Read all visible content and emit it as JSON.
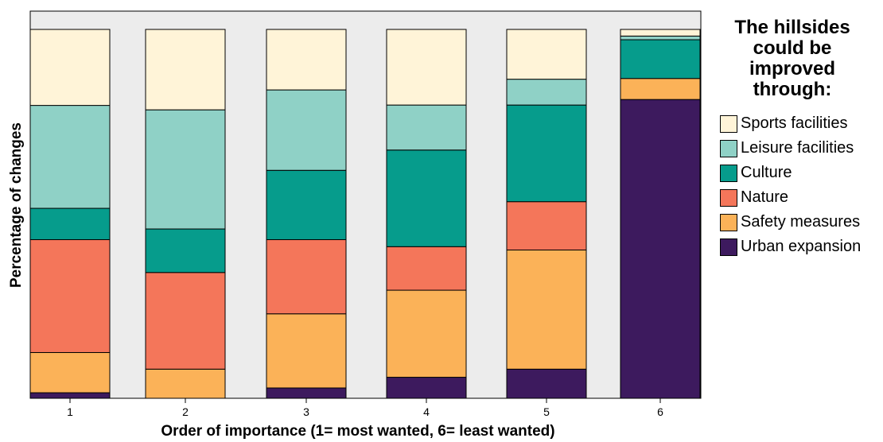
{
  "chart_data": {
    "type": "bar",
    "stacked": true,
    "normalized_to_100": true,
    "categories": [
      "1",
      "2",
      "3",
      "4",
      "5",
      "6"
    ],
    "xlabel": "Order of importance (1= most wanted, 6= least wanted)",
    "ylabel": "Percentage of changes",
    "ylim": [
      0,
      100
    ],
    "grid": false,
    "plot_background": "#ececec",
    "legend": {
      "title": "The hillsides\ncould be\nimproved\nthrough:",
      "placement": "right"
    },
    "series": [
      {
        "name": "Urban expansion",
        "color": "#3d1a5e",
        "values": [
          1.5,
          0,
          2.8,
          5.7,
          7.9,
          81.0
        ]
      },
      {
        "name": "Safety measures",
        "color": "#fbb258",
        "values": [
          10.9,
          7.9,
          20.1,
          23.6,
          32.3,
          5.7
        ]
      },
      {
        "name": "Nature",
        "color": "#f4765a",
        "values": [
          30.6,
          26.2,
          20.1,
          11.8,
          13.1,
          0
        ]
      },
      {
        "name": "Culture",
        "color": "#069c8c",
        "values": [
          8.5,
          11.8,
          18.8,
          26.2,
          26.2,
          10.5
        ]
      },
      {
        "name": "Leisure facilities",
        "color": "#8fd1c6",
        "values": [
          27.9,
          32.3,
          21.8,
          12.2,
          7.0,
          1.0
        ]
      },
      {
        "name": "Sports facilities",
        "color": "#fff4d8",
        "values": [
          20.6,
          21.8,
          16.4,
          20.5,
          13.5,
          1.8
        ]
      }
    ]
  }
}
